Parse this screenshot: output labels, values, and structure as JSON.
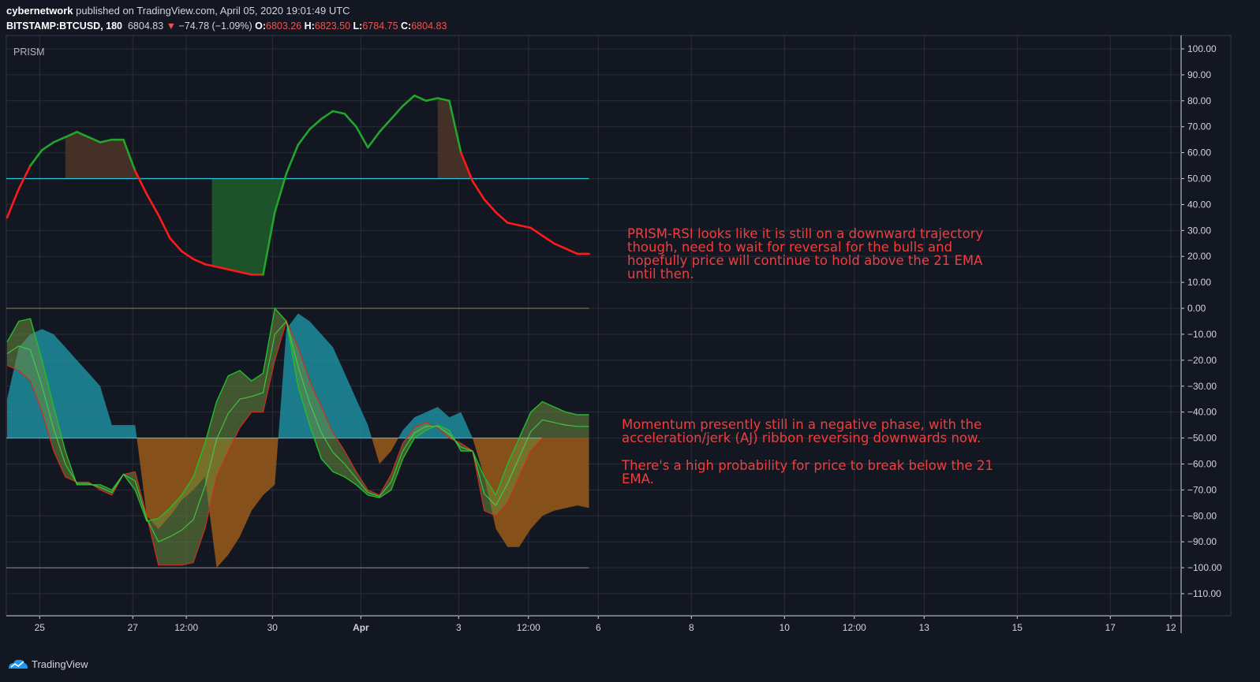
{
  "header": {
    "author": "cybernetwork",
    "published": "published on TradingView.com, April 05, 2020 19:01:49 UTC",
    "symbol": "BITSTAMP:BTCUSD, 180",
    "last": "6804.83",
    "change_arrow": "▼",
    "change": "−74.78 (−1.09%)",
    "o_label": "O:",
    "o": "6803.26",
    "h_label": "H:",
    "h": "6823.50",
    "l_label": "L:",
    "l": "6784.75",
    "c_label": "C:",
    "c": "6804.83"
  },
  "panel_label": "PRISM",
  "annotations": {
    "rsi": [
      "PRISM-RSI looks like it is still on a downward trajectory",
      "though, need to wait for reversal for the bulls and",
      "hopefully price will continue to hold above the 21 EMA",
      "until then."
    ],
    "momentum": [
      "Momentum presently still in a negative phase, with the",
      "acceleration/jerk (AJ) ribbon reversing downwards now."
    ],
    "break": [
      "There's a high probability for price to break below the 21",
      "EMA."
    ]
  },
  "footer": {
    "brand": "TradingView",
    "logo_icon": "tradingview-logo-icon"
  },
  "colors": {
    "bg": "#131722",
    "grid": "#2a2e39",
    "bull_line": "#22a52b",
    "bear_line": "#ff1a1a",
    "bull_fill": "#1f5a2a",
    "bear_fill": "#4a3327",
    "cyan": "#26c6da",
    "teal_fill": "#1e8d9e",
    "orange_fill": "#9a5a18",
    "olive_line": "#7d7c44"
  },
  "chart_data": {
    "type": "line",
    "y_ticks": [
      "100.00",
      "90.00",
      "80.00",
      "70.00",
      "60.00",
      "50.00",
      "40.00",
      "30.00",
      "20.00",
      "10.00",
      "0.00",
      "−10.00",
      "−20.00",
      "−30.00",
      "−40.00",
      "−50.00",
      "−60.00",
      "−70.00",
      "−80.00",
      "−90.00",
      "−100.00",
      "−110.00"
    ],
    "ylim": [
      -118,
      104
    ],
    "x_ticks": [
      {
        "label": "25",
        "x": 0.7
      },
      {
        "label": "27",
        "x": 2.7
      },
      {
        "label": "12:00",
        "x": 3.85
      },
      {
        "label": "30",
        "x": 5.7
      },
      {
        "label": "Apr",
        "x": 7.6
      },
      {
        "label": "3",
        "x": 9.7
      },
      {
        "label": "12:00",
        "x": 11.2
      },
      {
        "label": "6",
        "x": 12.7
      },
      {
        "label": "8",
        "x": 14.7
      },
      {
        "label": "10",
        "x": 16.7
      },
      {
        "label": "12:00",
        "x": 18.2
      },
      {
        "label": "13",
        "x": 19.7
      },
      {
        "label": "15",
        "x": 21.7
      },
      {
        "label": "17",
        "x": 23.7
      },
      {
        "label": "12",
        "x": 25.0
      }
    ],
    "xlim": [
      0,
      25.2
    ],
    "reference_lines": [
      50,
      0,
      -50,
      -100
    ],
    "rsi": {
      "x": [
        0,
        0.25,
        0.5,
        0.75,
        1,
        1.25,
        1.5,
        1.75,
        2,
        2.25,
        2.5,
        2.75,
        3,
        3.25,
        3.5,
        3.75,
        4,
        4.25,
        4.5,
        4.75,
        5,
        5.25,
        5.5,
        5.75,
        6,
        6.25,
        6.5,
        6.75,
        7,
        7.25,
        7.5,
        7.75,
        8,
        8.25,
        8.5,
        8.75,
        9,
        9.25,
        9.5,
        9.75,
        10,
        10.25,
        10.5,
        10.75,
        11,
        11.25,
        11.5,
        11.75,
        12,
        12.25,
        12.5
      ],
      "values": [
        35,
        46,
        55,
        61,
        64,
        66,
        68,
        66,
        64,
        65,
        65,
        53,
        44,
        36,
        27,
        22,
        19,
        17,
        16,
        15,
        14,
        13,
        13,
        37,
        52,
        63,
        69,
        73,
        76,
        75,
        70,
        62,
        68,
        73,
        78,
        82,
        80,
        81,
        80,
        60,
        49,
        42,
        37,
        33,
        32,
        31,
        28,
        25,
        23,
        21,
        21
      ]
    },
    "momentum": {
      "x": [
        0,
        0.25,
        0.5,
        0.75,
        1,
        1.25,
        1.5,
        1.75,
        2,
        2.25,
        2.5,
        2.75,
        3,
        3.25,
        3.5,
        3.75,
        4,
        4.25,
        4.5,
        4.75,
        5,
        5.25,
        5.5,
        5.75,
        6,
        6.25,
        6.5,
        6.75,
        7,
        7.25,
        7.5,
        7.75,
        8,
        8.25,
        8.5,
        8.75,
        9,
        9.25,
        9.5,
        9.75,
        10,
        10.25,
        10.5,
        10.75,
        11,
        11.25,
        11.5,
        11.75,
        12,
        12.25,
        12.5
      ],
      "fast": [
        -13,
        -5,
        -4,
        -20,
        -38,
        -55,
        -68,
        -68,
        -68,
        -70,
        -64,
        -70,
        -82,
        -81,
        -77,
        -72,
        -65,
        -52,
        -36,
        -26,
        -24,
        -28,
        -25,
        0,
        -5,
        -30,
        -45,
        -58,
        -63,
        -65,
        -68,
        -72,
        -73,
        -70,
        -58,
        -50,
        -47,
        -45,
        -47,
        -55,
        -55,
        -65,
        -72,
        -60,
        -50,
        -40,
        -36,
        -38,
        -40,
        -41,
        -41
      ],
      "slow": [
        -22,
        -24,
        -28,
        -40,
        -55,
        -65,
        -67,
        -67,
        -70,
        -72,
        -64,
        -63,
        -80,
        -99,
        -99,
        -99,
        -98,
        -85,
        -65,
        -55,
        -46,
        -40,
        -40,
        -20,
        -5,
        -15,
        -28,
        -38,
        -48,
        -55,
        -63,
        -70,
        -72,
        -64,
        -52,
        -46,
        -44,
        -46,
        -50,
        -52,
        -55,
        -78,
        -80,
        -75,
        -65,
        -55,
        -50,
        -50,
        -50,
        -50,
        -50
      ],
      "hist": [
        -35,
        -15,
        -10,
        -8,
        -10,
        -15,
        -20,
        -25,
        -30,
        -45,
        -45,
        -45,
        -80,
        -85,
        -80,
        -74,
        -70,
        -65,
        -100,
        -95,
        -88,
        -78,
        -72,
        -68,
        -8,
        -2,
        -5,
        -10,
        -15,
        -25,
        -35,
        -45,
        -60,
        -55,
        -47,
        -42,
        -40,
        -38,
        -42,
        -40,
        -50,
        -65,
        -85,
        -92,
        -92,
        -85,
        -80,
        -78,
        -77,
        -76,
        -77
      ]
    }
  }
}
